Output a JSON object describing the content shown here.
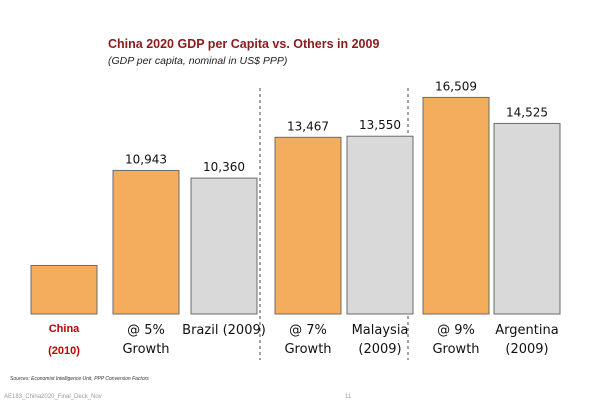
{
  "chart_data": {
    "type": "bar",
    "title": "China 2020 GDP per Capita vs. Others in 2009",
    "subtitle": "(GDP per capita, nominal in US$ PPP)",
    "categories": [
      {
        "lines": [
          "China",
          "(2010)"
        ],
        "highlight": true
      },
      {
        "lines": [
          "@ 5%",
          "Growth"
        ]
      },
      {
        "lines": [
          "Brazil (2009)"
        ]
      },
      {
        "lines": [
          "@ 7%",
          "Growth"
        ]
      },
      {
        "lines": [
          "Malaysia",
          "(2009)"
        ]
      },
      {
        "lines": [
          "@ 9%",
          "Growth"
        ]
      },
      {
        "lines": [
          "Argentina",
          "(2009)"
        ]
      }
    ],
    "values": [
      3700,
      10943,
      10360,
      13467,
      13550,
      16509,
      14525
    ],
    "value_labels": [
      "",
      "10,943",
      "10,360",
      "13,467",
      "13,550",
      "16,509",
      "14,525"
    ],
    "colors": [
      "#f4ad5c",
      "#f4ad5c",
      "#d9d9d9",
      "#f4ad5c",
      "#d9d9d9",
      "#f4ad5c",
      "#d9d9d9"
    ],
    "ylim": [
      0,
      18000
    ],
    "xlabel": "",
    "ylabel": ""
  },
  "sources": "Sources: Economist Intelligence Unit, PPP Conversion Factors",
  "footer": "AE183_China2020_Final_Deck_Nov",
  "page_number": "11"
}
